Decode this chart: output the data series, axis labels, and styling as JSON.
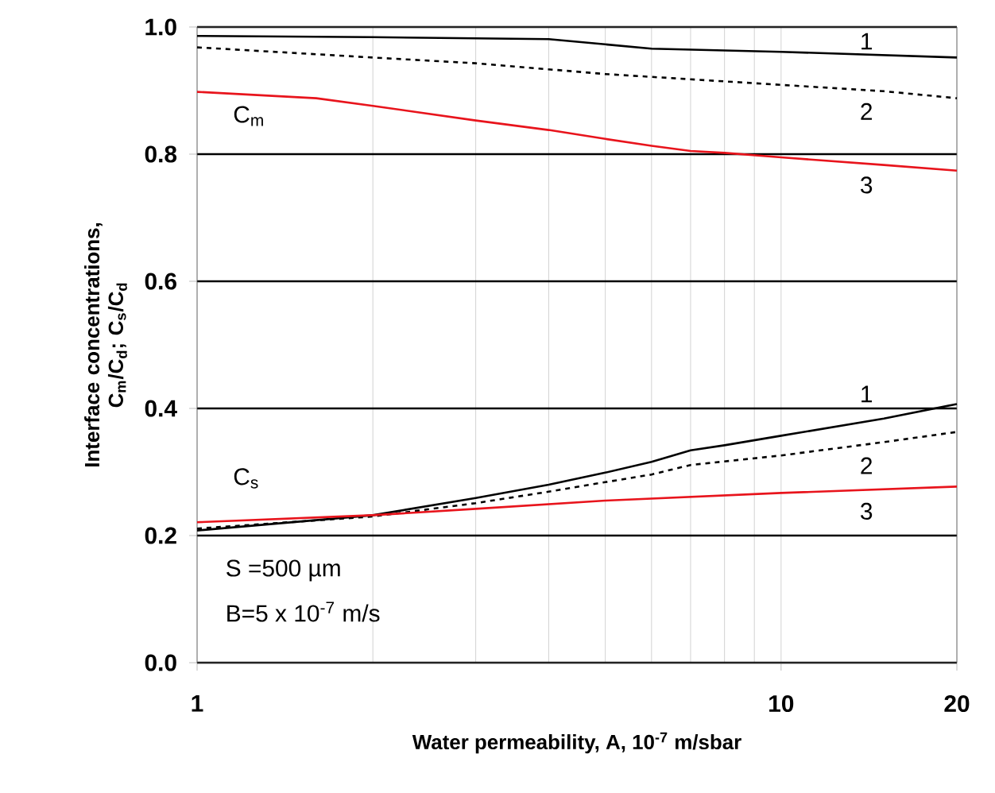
{
  "chart_data": {
    "type": "line",
    "xlabel": "Water permeability, A, 10$^{-7}$ m/sbar",
    "ylabel": "Interface concentrations, C$_{m}$/C$_{d}$; C$_{s}$/C$_{d}$",
    "log": "x",
    "grid": true,
    "xlim": [
      1,
      20
    ],
    "ylim": [
      0,
      1
    ],
    "xticks": [
      1,
      10,
      20
    ],
    "yticks": [
      {
        "value": 0,
        "label": "0.0"
      },
      {
        "value": 0.2,
        "label": "0.2"
      },
      {
        "value": 0.4,
        "label": "0.4"
      },
      {
        "value": 0.6,
        "label": "0.6"
      },
      {
        "value": 0.8,
        "label": "0.8"
      },
      {
        "value": 1,
        "label": "1.0"
      }
    ],
    "series": [
      {
        "name": "1",
        "color": "#000000",
        "line_style": "solid",
        "x": [
          1,
          2,
          4,
          6,
          10,
          20
        ],
        "values": [
          0.986,
          0.984,
          0.981,
          0.966,
          0.961,
          0.952
        ]
      },
      {
        "name": "2",
        "color": "#000000",
        "line_style": "dashed",
        "x": [
          1,
          2,
          3,
          5,
          10,
          15,
          20
        ],
        "values": [
          0.968,
          0.952,
          0.943,
          0.926,
          0.909,
          0.899,
          0.888
        ]
      },
      {
        "name": "3",
        "color": "#e8141c",
        "line_style": "solid",
        "x": [
          1,
          1.6,
          2,
          3,
          4,
          5,
          6,
          7,
          8,
          10,
          15,
          20
        ],
        "values": [
          0.898,
          0.888,
          0.876,
          0.853,
          0.838,
          0.824,
          0.813,
          0.805,
          0.802,
          0.795,
          0.783,
          0.774
        ]
      },
      {
        "name": "1",
        "color": "#000000",
        "line_style": "solid",
        "x": [
          1,
          2,
          3,
          4,
          5,
          6,
          7,
          8,
          10,
          15,
          20
        ],
        "values": [
          0.208,
          0.232,
          0.259,
          0.28,
          0.299,
          0.316,
          0.334,
          0.342,
          0.357,
          0.384,
          0.407
        ]
      },
      {
        "name": "2",
        "color": "#000000",
        "line_style": "dashed",
        "x": [
          1,
          2,
          3,
          4,
          5,
          6,
          7,
          10,
          15,
          20
        ],
        "values": [
          0.211,
          0.23,
          0.251,
          0.269,
          0.284,
          0.296,
          0.311,
          0.326,
          0.347,
          0.363
        ]
      },
      {
        "name": "3",
        "color": "#e8141c",
        "line_style": "solid",
        "x": [
          1,
          2,
          3,
          5,
          10,
          20
        ],
        "values": [
          0.221,
          0.232,
          0.242,
          0.255,
          0.267,
          0.277
        ]
      }
    ],
    "annotations": [
      "C$_{m}$",
      "C$_{s}$",
      "S  =500 µm",
      "B=5 x 10$^{-7}$ m/s"
    ]
  }
}
